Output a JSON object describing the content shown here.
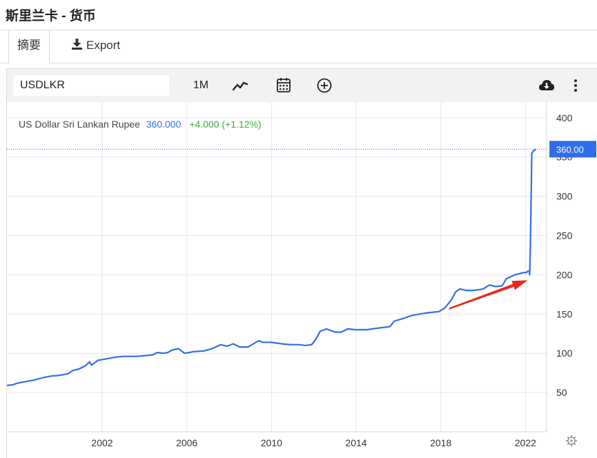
{
  "page": {
    "title": "斯里兰卡 - 货币"
  },
  "tabs": {
    "summary": "摘要",
    "export": "Export"
  },
  "toolbar": {
    "symbol": "USDLKR",
    "range": "1M",
    "icons": [
      "line-chart-icon",
      "calendar-icon",
      "add-circle-icon",
      "cloud-download-icon",
      "more-vertical-icon"
    ]
  },
  "legend": {
    "name": "US Dollar Sri Lankan Rupee",
    "value": "360.000",
    "change": "+4.000 (+1.12%)"
  },
  "colors": {
    "line": "#2f6ee8",
    "change": "#33b233",
    "price_tag": "#2f6ee8",
    "arrow": "#e8281e",
    "grid": "#e6e6e6"
  },
  "price_tag": "360.00",
  "annotation": {
    "type": "arrow",
    "from": [
      "2018.4",
      157
    ],
    "to": [
      "2022.1",
      193
    ]
  },
  "chart_data": {
    "type": "line",
    "title": "",
    "xlabel": "",
    "ylabel": "",
    "xlim": [
      1997.5,
      2023
    ],
    "ylim": [
      0,
      420
    ],
    "x_ticks": [
      2002,
      2006,
      2010,
      2014,
      2018,
      2022
    ],
    "y_ticks": [
      50,
      100,
      150,
      200,
      250,
      300,
      350,
      400
    ],
    "grid": true,
    "y_axis_position": "right",
    "series": [
      {
        "name": "US Dollar Sri Lankan Rupee",
        "points": [
          [
            1997.5,
            59
          ],
          [
            1997.8,
            60
          ],
          [
            1998.0,
            62
          ],
          [
            1998.4,
            64
          ],
          [
            1998.8,
            66
          ],
          [
            1999.2,
            69
          ],
          [
            1999.6,
            71
          ],
          [
            2000.0,
            72
          ],
          [
            2000.4,
            74
          ],
          [
            2000.6,
            78
          ],
          [
            2000.9,
            80
          ],
          [
            2001.2,
            84
          ],
          [
            2001.4,
            89
          ],
          [
            2001.5,
            85
          ],
          [
            2001.8,
            91
          ],
          [
            2002.2,
            93
          ],
          [
            2002.6,
            95
          ],
          [
            2003.0,
            96
          ],
          [
            2003.6,
            96
          ],
          [
            2004.0,
            97
          ],
          [
            2004.4,
            98
          ],
          [
            2004.6,
            101
          ],
          [
            2004.9,
            100
          ],
          [
            2005.1,
            101
          ],
          [
            2005.3,
            104
          ],
          [
            2005.6,
            106
          ],
          [
            2005.9,
            100
          ],
          [
            2006.3,
            102
          ],
          [
            2006.8,
            103
          ],
          [
            2007.2,
            106
          ],
          [
            2007.6,
            111
          ],
          [
            2007.9,
            109
          ],
          [
            2008.2,
            112
          ],
          [
            2008.5,
            108
          ],
          [
            2008.9,
            108
          ],
          [
            2009.2,
            113
          ],
          [
            2009.4,
            116
          ],
          [
            2009.6,
            114
          ],
          [
            2010.0,
            114
          ],
          [
            2010.5,
            112
          ],
          [
            2010.9,
            111
          ],
          [
            2011.3,
            111
          ],
          [
            2011.6,
            110
          ],
          [
            2011.9,
            111
          ],
          [
            2012.1,
            118
          ],
          [
            2012.3,
            128
          ],
          [
            2012.6,
            131
          ],
          [
            2013.0,
            127
          ],
          [
            2013.3,
            127
          ],
          [
            2013.6,
            131
          ],
          [
            2014.0,
            130
          ],
          [
            2014.5,
            130
          ],
          [
            2015.0,
            132
          ],
          [
            2015.6,
            134
          ],
          [
            2015.8,
            141
          ],
          [
            2016.2,
            144
          ],
          [
            2016.6,
            148
          ],
          [
            2017.0,
            150
          ],
          [
            2017.5,
            152
          ],
          [
            2017.9,
            153
          ],
          [
            2018.2,
            158
          ],
          [
            2018.5,
            168
          ],
          [
            2018.7,
            178
          ],
          [
            2018.9,
            182
          ],
          [
            2019.2,
            180
          ],
          [
            2019.5,
            180
          ],
          [
            2019.8,
            181
          ],
          [
            2020.0,
            182
          ],
          [
            2020.3,
            187
          ],
          [
            2020.6,
            185
          ],
          [
            2020.9,
            186
          ],
          [
            2021.1,
            195
          ],
          [
            2021.5,
            200
          ],
          [
            2021.8,
            202
          ],
          [
            2021.95,
            203
          ],
          [
            2022.05,
            203
          ],
          [
            2022.12,
            205
          ],
          [
            2022.18,
            204
          ],
          [
            2022.2,
            200
          ],
          [
            2022.23,
            235
          ],
          [
            2022.27,
            300
          ],
          [
            2022.3,
            355
          ],
          [
            2022.38,
            358
          ],
          [
            2022.5,
            360
          ]
        ]
      }
    ]
  }
}
